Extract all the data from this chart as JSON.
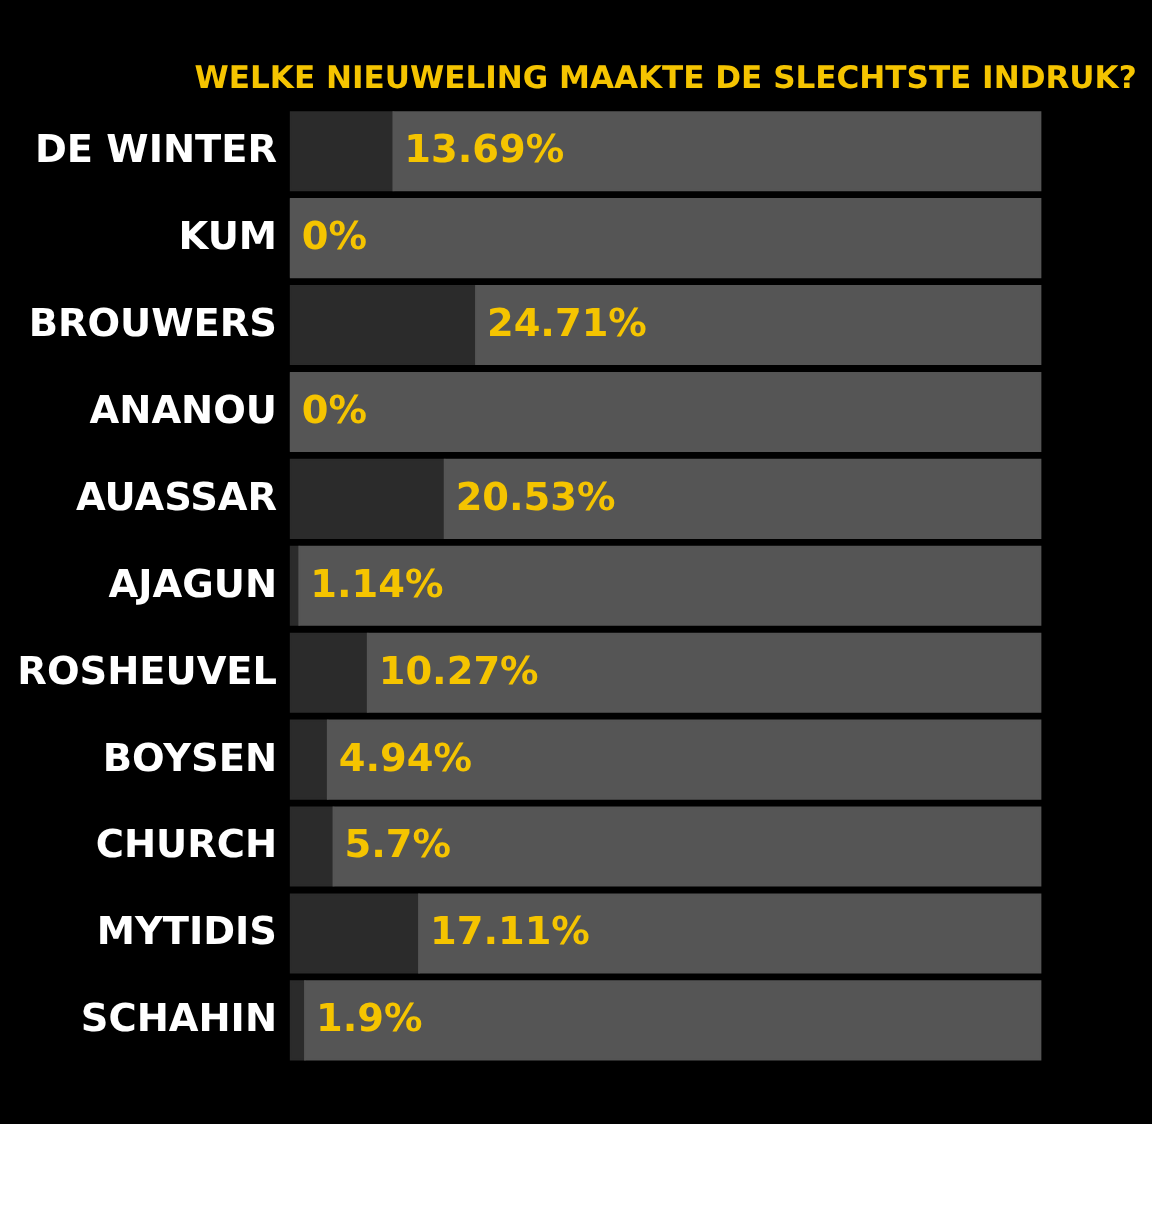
{
  "chart_data": {
    "type": "bar",
    "orientation": "horizontal",
    "stacked": true,
    "title": "WELKE NIEUWELING MAAKTE DE SLECHTSTE INDRUK?",
    "categories": [
      "DE WINTER",
      "KUM",
      "BROUWERS",
      "ANANOU",
      "AUASSAR",
      "AJAGUN",
      "ROSHEUVEL",
      "BOYSEN",
      "CHURCH",
      "MYTIDIS",
      "SCHAHIN"
    ],
    "series": [
      {
        "color": "#2b2b2b",
        "values": [
          13.69,
          0,
          24.71,
          0,
          20.53,
          1.14,
          10.27,
          4.94,
          5.7,
          17.11,
          1.9
        ],
        "value_labels": [
          "13.69%",
          "0%",
          "24.71%",
          "0%",
          "20.53%",
          "1.14%",
          "10.27%",
          "4.94%",
          "5.7%",
          "17.11%",
          "1.9%"
        ]
      },
      {
        "color": "#555555",
        "values": [
          86.31,
          100,
          75.29,
          100,
          79.47,
          98.86,
          89.73,
          95.06,
          94.3,
          82.89,
          98.1
        ]
      }
    ],
    "xlim": [
      0,
      100
    ],
    "tick_labels": "y",
    "grid": false
  }
}
